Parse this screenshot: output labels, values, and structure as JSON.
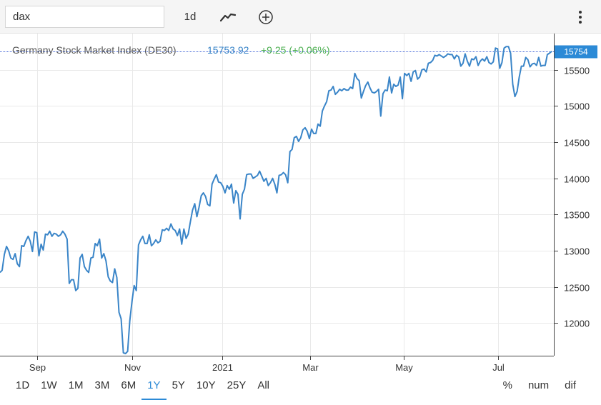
{
  "toolbar": {
    "search_value": "dax",
    "interval_label": "1d",
    "chart_type_icon": "line-chart-icon",
    "add_icon": "plus-circle-icon",
    "menu_icon": "vertical-ellipsis-icon"
  },
  "colors": {
    "series": "#3a85c8",
    "price_up": "#4caf50",
    "badge": "#2c8ad6",
    "grid": "#e9e9e9"
  },
  "chart_data": {
    "type": "line",
    "title": "Germany Stock Market Index (DE30)",
    "last_value": "15753.92",
    "change": "+9.25 (+0.06%)",
    "last_label": "15754",
    "ylim": [
      11550,
      16000
    ],
    "y_ticks": [
      "12000",
      "12500",
      "13000",
      "13500",
      "14000",
      "14500",
      "15000",
      "15500"
    ],
    "x_ticks": [
      "Sep",
      "Nov",
      "2021",
      "Mar",
      "May",
      "Jul"
    ],
    "grid": true,
    "values": [
      12700,
      12730,
      12950,
      13060,
      13000,
      12900,
      12880,
      12960,
      12820,
      12780,
      13070,
      13060,
      13140,
      13200,
      13130,
      12990,
      13260,
      13250,
      12930,
      13090,
      13010,
      13230,
      13220,
      13270,
      13200,
      13240,
      13230,
      13200,
      13220,
      13270,
      13230,
      13160,
      12550,
      12600,
      12600,
      12450,
      12480,
      12900,
      12950,
      12780,
      12730,
      12700,
      12900,
      12910,
      13100,
      13070,
      13160,
      12900,
      12960,
      12860,
      12640,
      12580,
      12560,
      12750,
      12630,
      12150,
      12060,
      11590,
      11580,
      11610,
      12030,
      12300,
      12520,
      12450,
      13080,
      13150,
      13200,
      13100,
      13100,
      13220,
      13070,
      13100,
      13150,
      13110,
      13130,
      13290,
      13280,
      13310,
      13280,
      13370,
      13300,
      13280,
      13210,
      13300,
      13090,
      13300,
      13170,
      13230,
      13400,
      13560,
      13650,
      13470,
      13600,
      13760,
      13800,
      13750,
      13640,
      13620,
      13920,
      13990,
      14050,
      13950,
      13940,
      13890,
      13800,
      13900,
      13850,
      13920,
      13660,
      13830,
      13780,
      13440,
      13780,
      13850,
      14050,
      14060,
      14060,
      14000,
      14020,
      14040,
      14100,
      14030,
      13960,
      14000,
      13900,
      13940,
      14000,
      13920,
      13800,
      14040,
      14050,
      14080,
      14050,
      13940,
      14370,
      14400,
      14560,
      14580,
      14510,
      14560,
      14670,
      14700,
      14650,
      14550,
      14680,
      14620,
      14620,
      14750,
      14720,
      14930,
      15000,
      15060,
      15210,
      15220,
      15270,
      15160,
      15190,
      15230,
      15210,
      15240,
      15220,
      15220,
      15260,
      15240,
      15450,
      15380,
      15350,
      15110,
      15200,
      15280,
      15330,
      15250,
      15190,
      15180,
      15200,
      15230,
      14860,
      15170,
      15220,
      15210,
      15400,
      15180,
      15300,
      15270,
      15290,
      15400,
      15100,
      15450,
      15420,
      15450,
      15340,
      15470,
      15490,
      15370,
      15400,
      15500,
      15510,
      15470,
      15590,
      15600,
      15630,
      15700,
      15690,
      15710,
      15690,
      15670,
      15690,
      15720,
      15710,
      15710,
      15650,
      15700,
      15680,
      15550,
      15590,
      15720,
      15620,
      15550,
      15650,
      15640,
      15680,
      15560,
      15620,
      15650,
      15620,
      15680,
      15600,
      15580,
      15610,
      15800,
      15790,
      15520,
      15600,
      15800,
      15820,
      15820,
      15730,
      15300,
      15130,
      15200,
      15400,
      15550,
      15550,
      15670,
      15640,
      15540,
      15580,
      15590,
      15560,
      15670,
      15550,
      15560,
      15560,
      15710,
      15730,
      15754
    ]
  },
  "ranges": [
    "1D",
    "1W",
    "1M",
    "3M",
    "6M",
    "1Y",
    "5Y",
    "10Y",
    "25Y",
    "All"
  ],
  "active_range": "1Y",
  "modes": [
    "%",
    "num",
    "dif"
  ]
}
